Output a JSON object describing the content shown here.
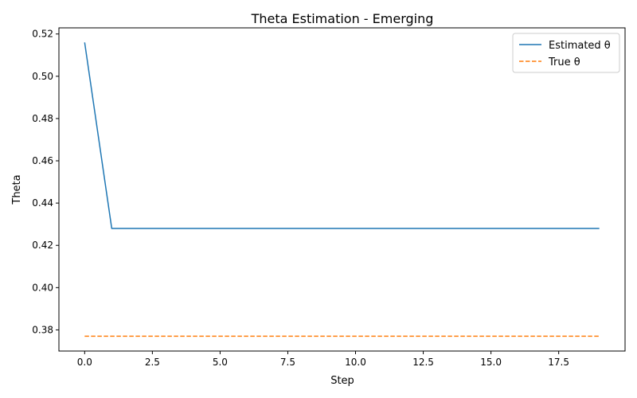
{
  "chart_data": {
    "type": "line",
    "title": "Theta Estimation - Emerging",
    "xlabel": "Step",
    "ylabel": "Theta",
    "xlim": [
      -0.95,
      19.95
    ],
    "ylim": [
      0.37,
      0.5229
    ],
    "xticks": [
      0.0,
      2.5,
      5.0,
      7.5,
      10.0,
      12.5,
      15.0,
      17.5
    ],
    "xtick_labels": [
      "0.0",
      "2.5",
      "5.0",
      "7.5",
      "10.0",
      "12.5",
      "15.0",
      "17.5"
    ],
    "yticks": [
      0.38,
      0.4,
      0.42,
      0.44,
      0.46,
      0.48,
      0.5,
      0.52
    ],
    "ytick_labels": [
      "0.38",
      "0.40",
      "0.42",
      "0.44",
      "0.46",
      "0.48",
      "0.50",
      "0.52"
    ],
    "grid": false,
    "legend": "top-right",
    "x": [
      0,
      1,
      2,
      3,
      4,
      5,
      6,
      7,
      8,
      9,
      10,
      11,
      12,
      13,
      14,
      15,
      16,
      17,
      18,
      19
    ],
    "series": [
      {
        "name": "Estimated θ",
        "color": "#1f77b4",
        "style": "solid",
        "values": [
          0.516,
          0.428,
          0.428,
          0.428,
          0.428,
          0.428,
          0.428,
          0.428,
          0.428,
          0.428,
          0.428,
          0.428,
          0.428,
          0.428,
          0.428,
          0.428,
          0.428,
          0.428,
          0.428,
          0.428
        ]
      },
      {
        "name": "True θ",
        "color": "#ff7f0e",
        "style": "dashed",
        "values": [
          0.377,
          0.377,
          0.377,
          0.377,
          0.377,
          0.377,
          0.377,
          0.377,
          0.377,
          0.377,
          0.377,
          0.377,
          0.377,
          0.377,
          0.377,
          0.377,
          0.377,
          0.377,
          0.377,
          0.377
        ]
      }
    ]
  }
}
